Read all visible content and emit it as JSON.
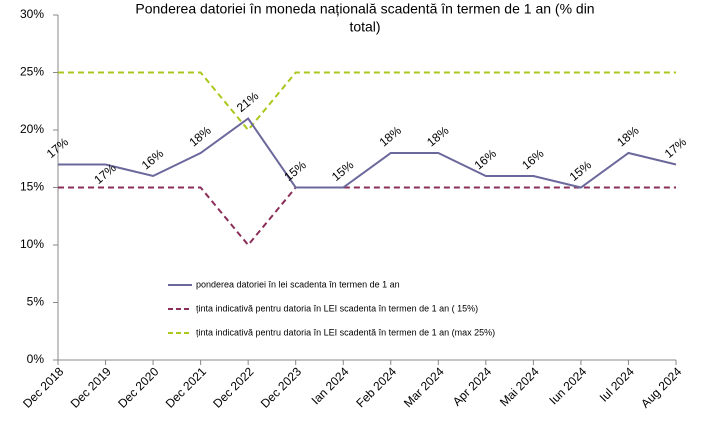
{
  "chart_data": {
    "type": "line",
    "title": [
      "Ponderea datoriei în moneda națională scadentă în termen de 1 an (% din",
      "total)"
    ],
    "categories": [
      "Dec 2018",
      "Dec 2019",
      "Dec 2020",
      "Dec 2021",
      "Dec 2022",
      "Dec 2023",
      "Ian 2024",
      "Feb 2024",
      "Mar 2024",
      "Apr 2024",
      "Mai 2024",
      "Iun 2024",
      "Iul 2024",
      "Aug 2024"
    ],
    "series": [
      {
        "name": "ponderea datoriei în lei scadenta în termen de 1 an",
        "color": "#6b689c",
        "style": "solid",
        "values": [
          17,
          17,
          16,
          18,
          21,
          15,
          15,
          18,
          18,
          16,
          16,
          15,
          18,
          17
        ],
        "value_labels": [
          "17%",
          "17%",
          "16%",
          "18%",
          "21%",
          "15%",
          "15%",
          "18%",
          "18%",
          "16%",
          "16%",
          "15%",
          "18%",
          "17%"
        ]
      },
      {
        "name": "ținta indicativă pentru datoria în LEI scadenta în termen de  1 an ( 15%)",
        "color": "#8b2f5a",
        "style": "dashed",
        "values": [
          15,
          15,
          15,
          15,
          10,
          15,
          15,
          15,
          15,
          15,
          15,
          15,
          15,
          15
        ]
      },
      {
        "name": "ținta indicativă pentru datoria în LEI scadentă în termen de  1 an (max 25%)",
        "color": "#a9c81e",
        "style": "dashed",
        "values": [
          25,
          25,
          25,
          25,
          20,
          25,
          25,
          25,
          25,
          25,
          25,
          25,
          25,
          25
        ]
      }
    ],
    "ylim": [
      0,
      30
    ],
    "yticks": [
      {
        "value": 0,
        "label": "0%"
      },
      {
        "value": 5,
        "label": "5%"
      },
      {
        "value": 10,
        "label": "10%"
      },
      {
        "value": 15,
        "label": "15%"
      },
      {
        "value": 20,
        "label": "20%"
      },
      {
        "value": 25,
        "label": "25%"
      },
      {
        "value": 30,
        "label": "30%"
      }
    ],
    "grid": false,
    "legend": "inside-bottom-left"
  }
}
